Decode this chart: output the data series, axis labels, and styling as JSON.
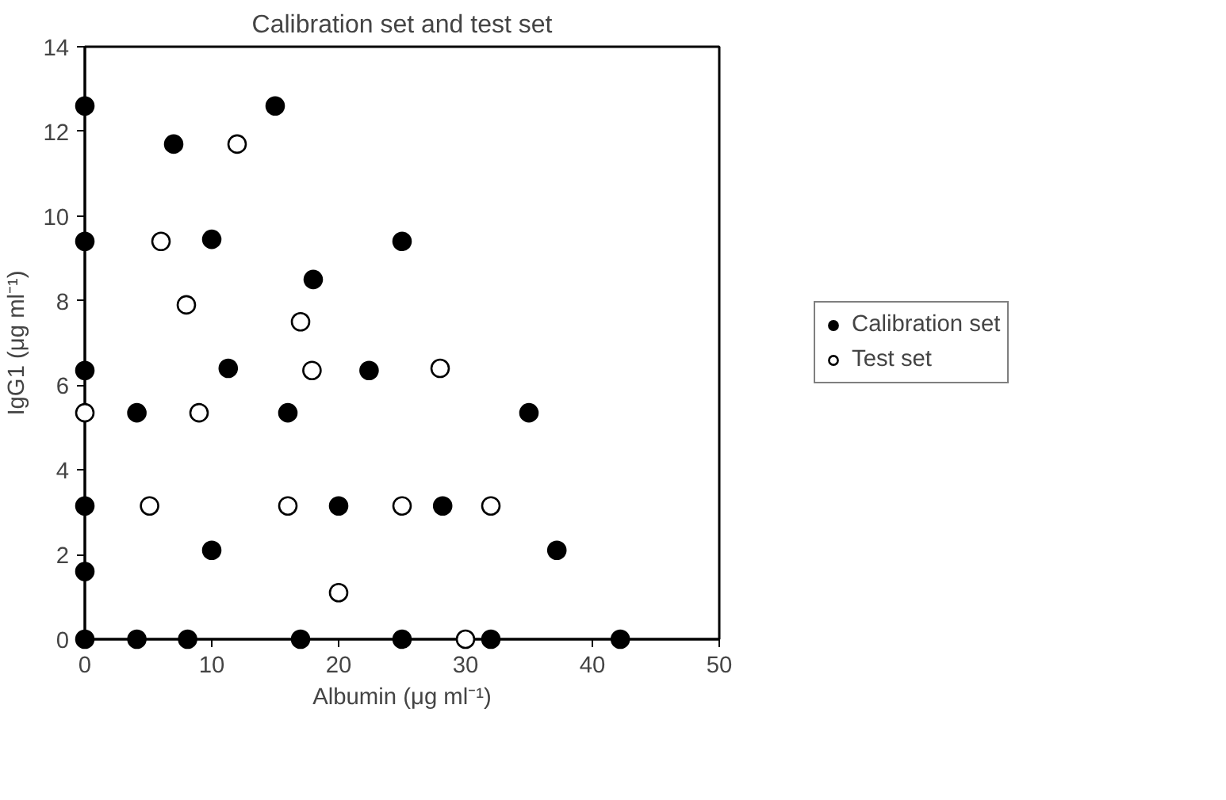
{
  "chart_data": {
    "type": "scatter",
    "title": "Calibration set and test set",
    "xlabel": "Albumin (μg ml⁻¹)",
    "ylabel": "IgG1 (μg ml⁻¹)",
    "xlim": [
      0,
      50
    ],
    "ylim": [
      0,
      14
    ],
    "xticks": [
      0,
      10,
      20,
      30,
      40,
      50
    ],
    "yticks": [
      0,
      2,
      4,
      6,
      8,
      10,
      12,
      14
    ],
    "grid": false,
    "legend": "right",
    "marker": "circle",
    "series": [
      {
        "name": "Calibration set",
        "color": "#000000",
        "x": [
          0,
          0,
          0,
          0,
          0,
          0,
          7,
          15,
          10,
          18,
          25,
          11.3,
          22.4,
          4.1,
          16,
          35,
          20,
          28.2,
          10,
          37.2,
          4.1,
          8.1,
          17,
          25,
          32,
          42.2
        ],
        "values": [
          12.6,
          9.4,
          6.35,
          3.15,
          1.6,
          0,
          11.7,
          12.6,
          9.45,
          8.5,
          9.4,
          6.4,
          6.35,
          5.35,
          5.35,
          5.35,
          3.15,
          3.15,
          2.1,
          2.1,
          0,
          0,
          0,
          0,
          0,
          0
        ]
      },
      {
        "name": "Test set",
        "color": "#ffffff",
        "x": [
          0,
          12,
          6,
          8,
          17,
          17.9,
          28,
          9,
          5.1,
          16,
          25,
          32,
          20,
          30
        ],
        "values": [
          5.35,
          11.7,
          9.4,
          7.9,
          7.5,
          6.35,
          6.4,
          5.35,
          3.15,
          3.15,
          3.15,
          3.15,
          1.1,
          0
        ]
      }
    ]
  }
}
